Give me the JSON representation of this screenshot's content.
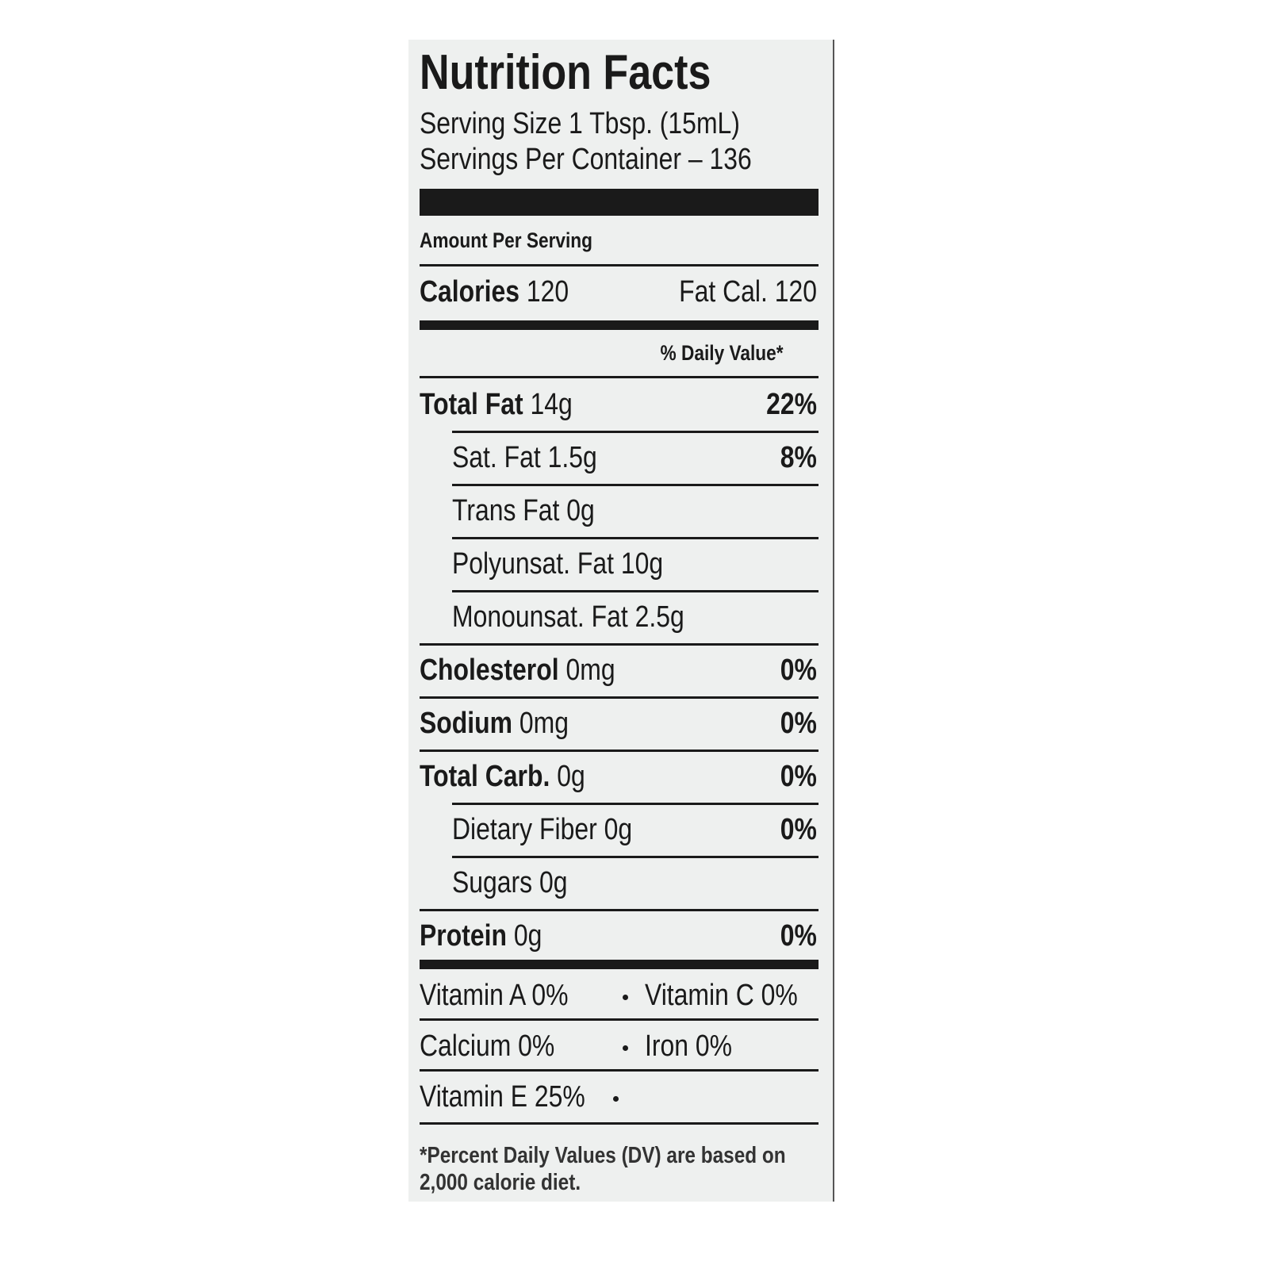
{
  "title": "Nutrition Facts",
  "serving_size": "Serving Size 1 Tbsp. (15mL)",
  "servings_per_container": "Servings Per Container – 136",
  "amount_per_serving": "Amount Per Serving",
  "calories": {
    "label": "Calories",
    "amount": "120",
    "fat_calories": "Fat Cal. 120"
  },
  "daily_value_header": "% Daily Value*",
  "nutrients": [
    {
      "label": "Total Fat",
      "amount": "14g",
      "dv": "22%",
      "sub": [
        {
          "label": "Sat. Fat 1.5g",
          "dv": "8%"
        },
        {
          "label": "Trans Fat 0g"
        },
        {
          "label": "Polyunsat. Fat 10g"
        },
        {
          "label": "Monounsat. Fat 2.5g"
        }
      ]
    },
    {
      "label": "Cholesterol",
      "amount": "0mg",
      "dv": "0%"
    },
    {
      "label": "Sodium",
      "amount": "0mg",
      "dv": "0%"
    },
    {
      "label": "Total Carb.",
      "amount": "0g",
      "dv": "0%",
      "sub": [
        {
          "label": "Dietary Fiber 0g",
          "dv": "0%"
        },
        {
          "label": "Sugars 0g"
        }
      ]
    },
    {
      "label": "Protein",
      "amount": "0g",
      "dv": "0%"
    }
  ],
  "vitamins": [
    [
      "Vitamin A 0%",
      "Vitamin C 0%"
    ],
    [
      "Calcium 0%",
      "Iron 0%"
    ],
    [
      "Vitamin E 25%"
    ]
  ],
  "footnote": "*Percent Daily Values (DV) are based on 2,000 calorie diet."
}
